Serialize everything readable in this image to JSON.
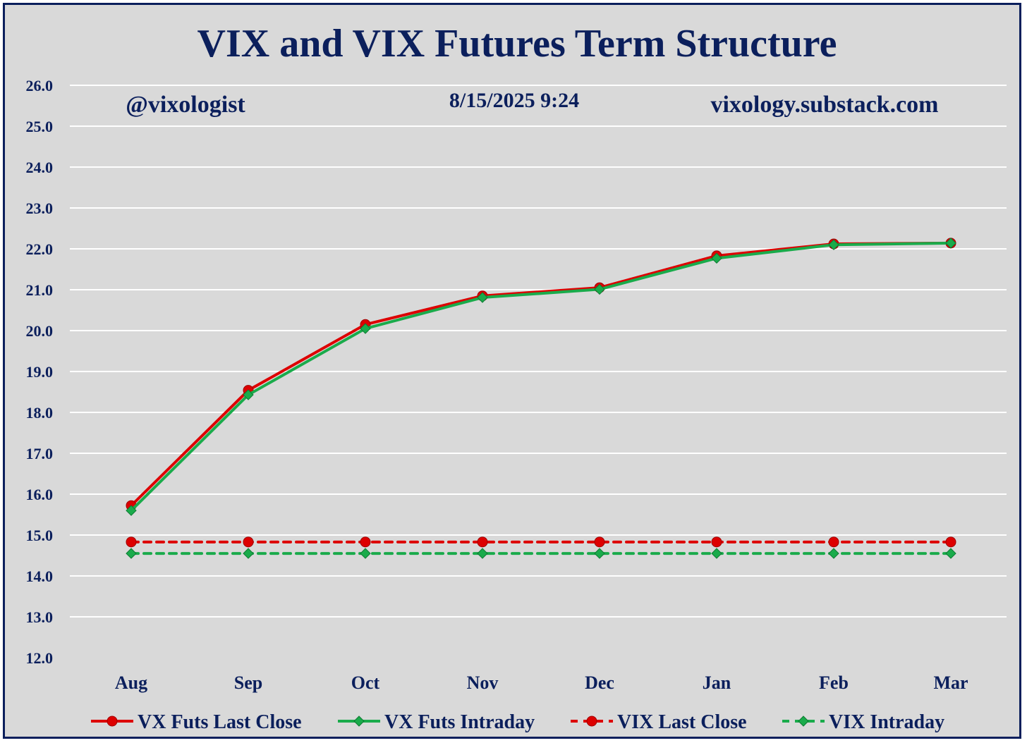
{
  "chart_data": {
    "type": "line",
    "title": "VIX and VIX Futures Term Structure",
    "annotations": {
      "handle": "@vixologist",
      "timestamp": "8/15/2025 9:24",
      "website": "vixology.substack.com"
    },
    "categories": [
      "Aug",
      "Sep",
      "Oct",
      "Nov",
      "Dec",
      "Jan",
      "Feb",
      "Mar"
    ],
    "ylim": [
      12.0,
      26.0
    ],
    "yticks": [
      "12.0",
      "13.0",
      "14.0",
      "15.0",
      "16.0",
      "17.0",
      "18.0",
      "19.0",
      "20.0",
      "21.0",
      "22.0",
      "23.0",
      "24.0",
      "25.0",
      "26.0"
    ],
    "grid": true,
    "legend_position": "bottom",
    "series": [
      {
        "name": "VX Futs Last Close",
        "values": [
          15.72,
          18.54,
          20.15,
          20.85,
          21.05,
          21.83,
          22.12,
          22.14
        ],
        "color": "#dd0000",
        "dashed": false,
        "marker": "circle"
      },
      {
        "name": "VX Futs Intraday",
        "values": [
          15.6,
          18.43,
          20.05,
          20.81,
          21.01,
          21.77,
          22.1,
          22.14
        ],
        "color": "#1aab4b",
        "dashed": false,
        "marker": "diamond"
      },
      {
        "name": "VIX Last Close",
        "values": [
          14.83,
          14.83,
          14.83,
          14.83,
          14.83,
          14.83,
          14.83,
          14.83
        ],
        "color": "#dd0000",
        "dashed": true,
        "marker": "circle"
      },
      {
        "name": "VIX Intraday",
        "values": [
          14.55,
          14.55,
          14.55,
          14.55,
          14.55,
          14.55,
          14.55,
          14.55
        ],
        "color": "#1aab4b",
        "dashed": true,
        "marker": "diamond"
      }
    ]
  }
}
